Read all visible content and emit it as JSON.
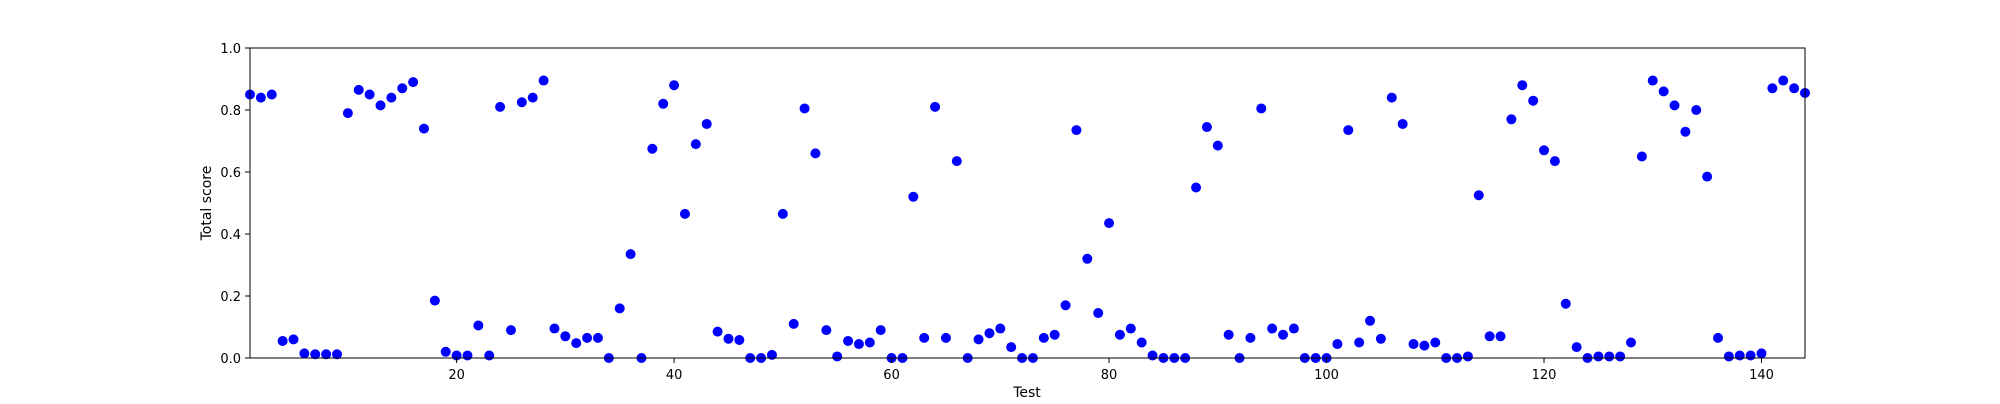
{
  "chart_data": {
    "type": "scatter",
    "title": "",
    "xlabel": "Test",
    "ylabel": "Total score",
    "xlim": [
      1,
      144
    ],
    "ylim": [
      0.0,
      1.0
    ],
    "xticks": [
      20,
      40,
      60,
      80,
      100,
      120,
      140
    ],
    "yticks": [
      0.0,
      0.2,
      0.4,
      0.6,
      0.8,
      1.0
    ],
    "ytick_labels": [
      "0.0",
      "0.2",
      "0.4",
      "0.6",
      "0.8",
      "1.0"
    ],
    "grid": false,
    "marker_color": "#0000ff",
    "series": [
      {
        "x": [
          1,
          2,
          3,
          4,
          5,
          6,
          7,
          8,
          9,
          10,
          11,
          12,
          13,
          14,
          15,
          16,
          17,
          18,
          19,
          20,
          21,
          22,
          23,
          24,
          25,
          26,
          27,
          28,
          29,
          30,
          31,
          32,
          33,
          34,
          35,
          36,
          37,
          38,
          39,
          40,
          41,
          42,
          43,
          44,
          45,
          46,
          47,
          48,
          49,
          50,
          51,
          52,
          53,
          54,
          55,
          56,
          57,
          58,
          59,
          60,
          61,
          62,
          63,
          64,
          65,
          66,
          67,
          68,
          69,
          70,
          71,
          72,
          73,
          74,
          75,
          76,
          77,
          78,
          79,
          80,
          81,
          82,
          83,
          84,
          85,
          86,
          87,
          88,
          89,
          90,
          91,
          92,
          93,
          94,
          95,
          96,
          97,
          98,
          99,
          100,
          101,
          102,
          103,
          104,
          105,
          106,
          107,
          108,
          109,
          110,
          111,
          112,
          113,
          114,
          115,
          116,
          117,
          118,
          119,
          120,
          121,
          122,
          123,
          124,
          125,
          126,
          127,
          128,
          129,
          130,
          131,
          132,
          133,
          134,
          135,
          136,
          137,
          138,
          139,
          140,
          141,
          142,
          143,
          144
        ],
        "y": [
          0.85,
          0.84,
          0.85,
          0.055,
          0.06,
          0.015,
          0.012,
          0.012,
          0.012,
          0.79,
          0.865,
          0.85,
          0.815,
          0.84,
          0.87,
          0.89,
          0.74,
          0.185,
          0.02,
          0.008,
          0.008,
          0.105,
          0.008,
          0.81,
          0.09,
          0.825,
          0.84,
          0.895,
          0.095,
          0.07,
          0.048,
          0.065,
          0.065,
          0.0,
          0.16,
          0.335,
          0.0,
          0.675,
          0.82,
          0.88,
          0.465,
          0.69,
          0.755,
          0.085,
          0.062,
          0.058,
          0.0,
          0.0,
          0.01,
          0.465,
          0.11,
          0.805,
          0.66,
          0.09,
          0.005,
          0.055,
          0.045,
          0.05,
          0.09,
          0.0,
          0.0,
          0.52,
          0.065,
          0.81,
          0.065,
          0.635,
          0.0,
          0.06,
          0.08,
          0.095,
          0.035,
          0.0,
          0.0,
          0.065,
          0.075,
          0.17,
          0.735,
          0.32,
          0.145,
          0.435,
          0.075,
          0.095,
          0.05,
          0.008,
          0.0,
          0.0,
          0.0,
          0.55,
          0.745,
          0.685,
          0.075,
          0.0,
          0.065,
          0.805,
          0.095,
          0.075,
          0.095,
          0.0,
          0.0,
          0.0,
          0.045,
          0.735,
          0.05,
          0.12,
          0.062,
          0.84,
          0.755,
          0.045,
          0.04,
          0.05,
          0.0,
          0.0,
          0.005,
          0.525,
          0.07,
          0.07,
          0.77,
          0.88,
          0.83,
          0.67,
          0.635,
          0.175,
          0.035,
          0.0,
          0.005,
          0.005,
          0.005,
          0.05,
          0.65,
          0.895,
          0.86,
          0.815,
          0.73,
          0.8,
          0.585,
          0.065,
          0.005,
          0.008,
          0.008,
          0.015,
          0.87,
          0.895,
          0.87,
          0.855
        ]
      }
    ]
  }
}
